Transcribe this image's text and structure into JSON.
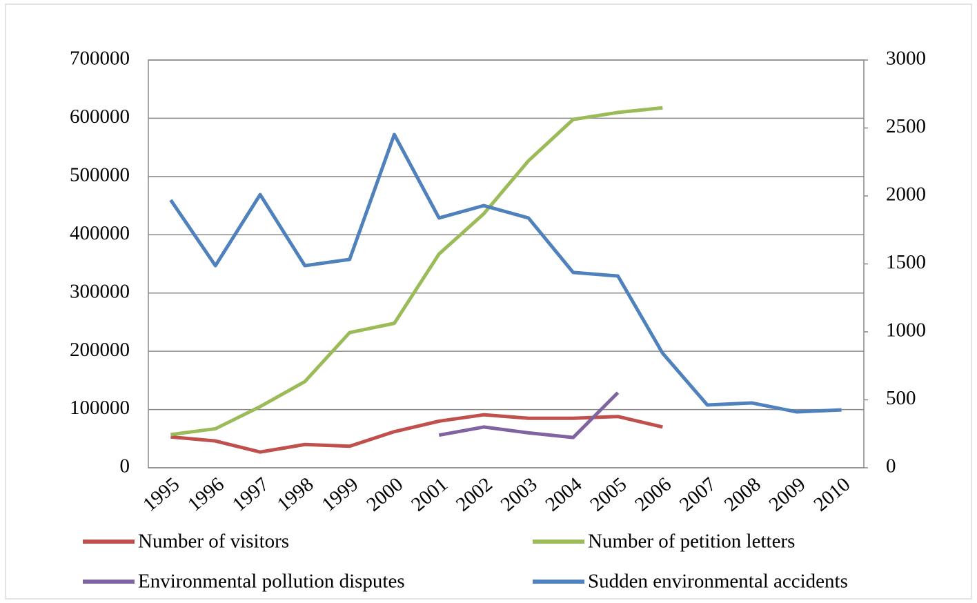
{
  "chart_data": {
    "type": "line",
    "categories": [
      "1995",
      "1996",
      "1997",
      "1998",
      "1999",
      "2000",
      "2001",
      "2002",
      "2003",
      "2004",
      "2005",
      "2006",
      "2007",
      "2008",
      "2009",
      "2010"
    ],
    "ylim": [
      0,
      700000
    ],
    "yticks": [
      0,
      100000,
      200000,
      300000,
      400000,
      500000,
      600000,
      700000
    ],
    "y2lim": [
      0,
      3000
    ],
    "y2ticks": [
      0,
      500,
      1000,
      1500,
      2000,
      2500,
      3000
    ],
    "grid": true,
    "series": [
      {
        "name": "Number of visitors",
        "color": "#c0504d",
        "values": [
          53000,
          46000,
          27000,
          40000,
          37000,
          62000,
          80000,
          91000,
          85000,
          85000,
          88000,
          70000,
          null,
          null,
          null,
          null
        ]
      },
      {
        "name": "Number of petition  letters",
        "color": "#9bbb59",
        "values": [
          57000,
          67000,
          105000,
          148000,
          232000,
          248000,
          367000,
          436000,
          527000,
          598000,
          610000,
          618000,
          null,
          null,
          null,
          null
        ]
      },
      {
        "name": "Environmental pollution disputes",
        "color": "#8064a2",
        "values": [
          null,
          null,
          null,
          null,
          null,
          null,
          56000,
          70000,
          60000,
          52000,
          129000,
          null,
          null,
          null,
          null,
          null
        ]
      },
      {
        "name": "Sudden environmental accidents",
        "color": "#4f81bd",
        "axis": "y2",
        "values": [
          1970,
          1487,
          2010,
          1487,
          1533,
          2452,
          1838,
          1929,
          1838,
          1437,
          1411,
          843,
          462,
          477,
          411,
          426
        ]
      }
    ]
  }
}
